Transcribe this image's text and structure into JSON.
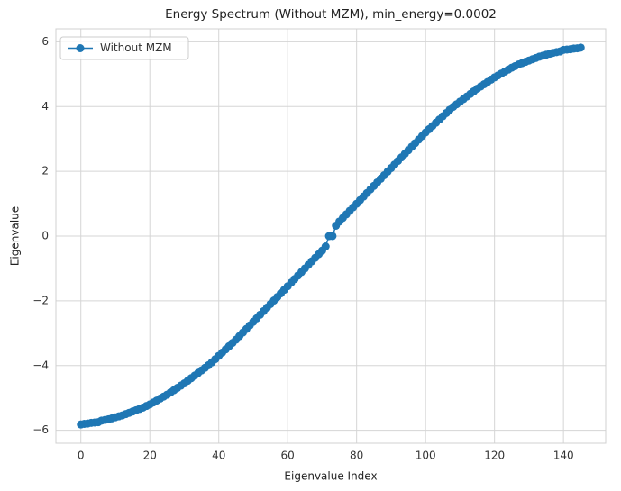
{
  "chart_data": {
    "type": "line",
    "title": "Energy Spectrum (Without MZM), min_energy=0.0002",
    "x_label": "Eigenvalue Index",
    "y_label": "Eigenvalue",
    "legend": "upper left",
    "grid": true,
    "xlim": [
      -7.25,
      152.25
    ],
    "xticks": [
      0,
      20,
      40,
      60,
      80,
      100,
      120,
      140
    ],
    "ylim": [
      -6.4,
      6.4
    ],
    "yticks": [
      {
        "value": -6,
        "label": "−6"
      },
      {
        "value": -4,
        "label": "−4"
      },
      {
        "value": -2,
        "label": "−2"
      },
      0,
      2,
      4,
      6
    ],
    "x": [
      0,
      1,
      2,
      3,
      4,
      5,
      6,
      7,
      8,
      9,
      10,
      11,
      12,
      13,
      14,
      15,
      16,
      17,
      18,
      19,
      20,
      21,
      22,
      23,
      24,
      25,
      26,
      27,
      28,
      29,
      30,
      31,
      32,
      33,
      34,
      35,
      36,
      37,
      38,
      39,
      40,
      41,
      42,
      43,
      44,
      45,
      46,
      47,
      48,
      49,
      50,
      51,
      52,
      53,
      54,
      55,
      56,
      57,
      58,
      59,
      60,
      61,
      62,
      63,
      64,
      65,
      66,
      67,
      68,
      69,
      70,
      71,
      72,
      73,
      74,
      75,
      76,
      77,
      78,
      79,
      80,
      81,
      82,
      83,
      84,
      85,
      86,
      87,
      88,
      89,
      90,
      91,
      92,
      93,
      94,
      95,
      96,
      97,
      98,
      99,
      100,
      101,
      102,
      103,
      104,
      105,
      106,
      107,
      108,
      109,
      110,
      111,
      112,
      113,
      114,
      115,
      116,
      117,
      118,
      119,
      120,
      121,
      122,
      123,
      124,
      125,
      126,
      127,
      128,
      129,
      130,
      131,
      132,
      133,
      134,
      135,
      136,
      137,
      138,
      139,
      140,
      141,
      142,
      143,
      144,
      145
    ],
    "series": [
      {
        "name": "Without MZM",
        "color": "#1f77b4",
        "values": [
          -5.82,
          -5.8,
          -5.79,
          -5.77,
          -5.76,
          -5.75,
          -5.7,
          -5.68,
          -5.66,
          -5.63,
          -5.6,
          -5.57,
          -5.54,
          -5.5,
          -5.46,
          -5.42,
          -5.38,
          -5.34,
          -5.3,
          -5.25,
          -5.2,
          -5.14,
          -5.08,
          -5.02,
          -4.96,
          -4.9,
          -4.83,
          -4.76,
          -4.69,
          -4.62,
          -4.55,
          -4.47,
          -4.39,
          -4.31,
          -4.23,
          -4.15,
          -4.07,
          -3.99,
          -3.9,
          -3.8,
          -3.7,
          -3.6,
          -3.5,
          -3.4,
          -3.3,
          -3.2,
          -3.09,
          -2.98,
          -2.87,
          -2.76,
          -2.65,
          -2.54,
          -2.43,
          -2.32,
          -2.21,
          -2.1,
          -1.99,
          -1.88,
          -1.77,
          -1.66,
          -1.55,
          -1.44,
          -1.33,
          -1.22,
          -1.11,
          -1.0,
          -0.89,
          -0.78,
          -0.67,
          -0.56,
          -0.45,
          -0.32,
          -0.0002,
          0.0002,
          0.32,
          0.45,
          0.56,
          0.67,
          0.78,
          0.89,
          1.0,
          1.11,
          1.22,
          1.33,
          1.44,
          1.55,
          1.66,
          1.77,
          1.88,
          1.99,
          2.1,
          2.21,
          2.32,
          2.43,
          2.54,
          2.65,
          2.76,
          2.87,
          2.98,
          3.09,
          3.2,
          3.3,
          3.4,
          3.5,
          3.6,
          3.7,
          3.8,
          3.9,
          3.99,
          4.07,
          4.15,
          4.23,
          4.31,
          4.39,
          4.47,
          4.55,
          4.62,
          4.69,
          4.76,
          4.83,
          4.9,
          4.96,
          5.02,
          5.08,
          5.14,
          5.2,
          5.25,
          5.3,
          5.34,
          5.38,
          5.42,
          5.46,
          5.5,
          5.54,
          5.57,
          5.6,
          5.63,
          5.66,
          5.68,
          5.7,
          5.75,
          5.76,
          5.77,
          5.79,
          5.8,
          5.82
        ]
      }
    ]
  }
}
